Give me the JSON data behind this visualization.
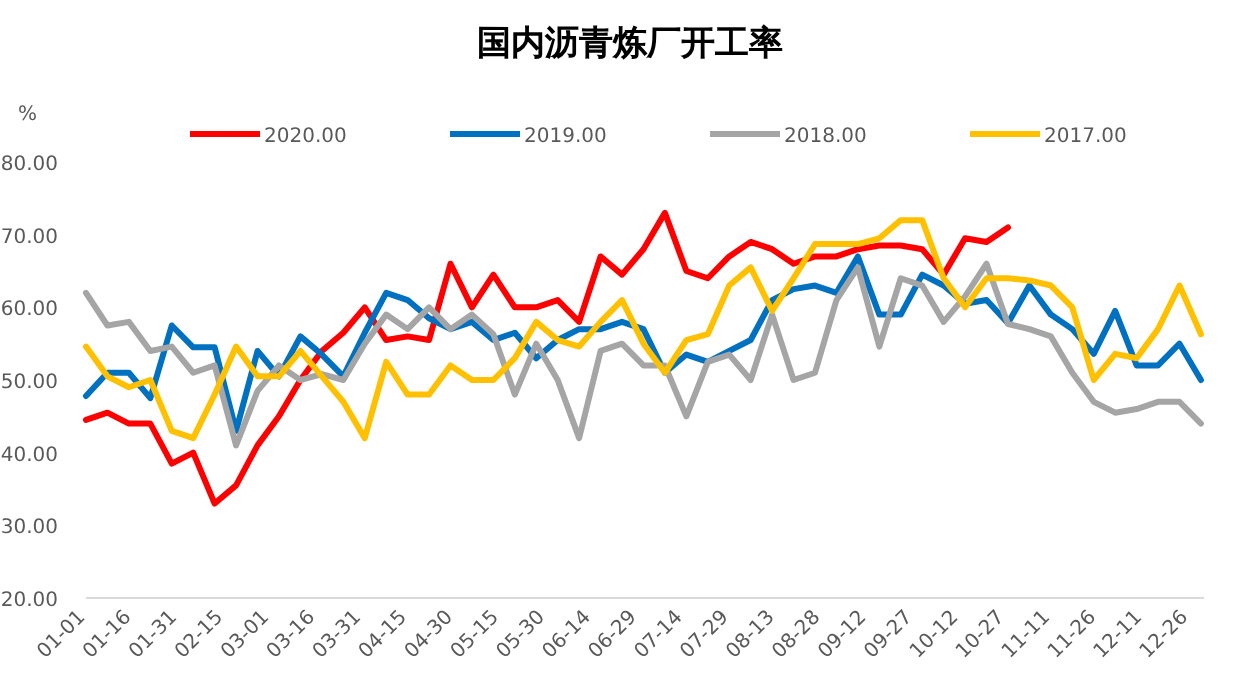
{
  "chart_data": {
    "type": "line",
    "title": "国内沥青炼厂开工率",
    "ylabel": "%",
    "x": [
      "--01-01",
      "--01-08",
      "--01-15",
      "--01-22",
      "--01-29",
      "--02-05",
      "--02-12",
      "--02-19",
      "--02-26",
      "--03-04",
      "--03-11",
      "--03-18",
      "--03-25",
      "--04-01",
      "--04-08",
      "--04-15",
      "--04-22",
      "--04-29",
      "--05-06",
      "--05-13",
      "--05-20",
      "--05-27",
      "--06-03",
      "--06-10",
      "--06-17",
      "--06-24",
      "--07-01",
      "--07-08",
      "--07-15",
      "--07-22",
      "--07-29",
      "--08-05",
      "--08-12",
      "--08-19",
      "--08-26",
      "--09-02",
      "--09-09",
      "--09-16",
      "--09-23",
      "--09-30",
      "--10-07",
      "--10-14",
      "--10-21",
      "--10-28",
      "--11-04",
      "--11-11",
      "--11-18",
      "--11-25",
      "--12-02",
      "--12-09",
      "--12-16",
      "--12-23",
      "--12-30"
    ],
    "series": [
      {
        "name": "2020.00",
        "color": "#ff0000",
        "values": [
          44.5,
          45.5,
          44,
          44,
          38.5,
          40,
          33,
          35.5,
          41,
          45,
          50,
          54,
          56.5,
          60,
          55.5,
          56,
          55.5,
          66,
          60,
          64.5,
          60,
          60,
          61,
          58,
          67,
          64.5,
          68,
          73,
          65,
          64,
          67,
          69,
          68,
          66,
          67,
          67,
          68,
          68.5,
          68.5,
          68,
          64.5,
          69.5,
          69,
          71,
          null,
          null,
          null,
          null,
          null,
          null,
          null,
          null,
          null
        ]
      },
      {
        "name": "2019.00",
        "color": "#0070c0",
        "values": [
          47.8,
          51,
          51,
          47.5,
          57.5,
          54.5,
          54.5,
          43,
          54,
          50.5,
          56,
          53.5,
          50.5,
          56.5,
          62,
          61,
          58.5,
          57,
          58,
          55.5,
          56.5,
          53,
          55.5,
          57,
          57,
          58,
          57,
          51,
          53.5,
          52.5,
          54,
          55.5,
          61,
          62.5,
          63,
          62,
          67,
          59,
          59,
          64.5,
          63,
          60.5,
          61,
          57.8,
          63,
          59,
          57,
          53.6,
          59.5,
          52,
          52,
          55,
          50
        ]
      },
      {
        "name": "2018.00",
        "color": "#a5a5a5",
        "values": [
          62,
          57.5,
          58,
          54,
          54.6,
          51,
          52,
          41,
          48.5,
          52,
          50,
          50.8,
          50,
          55,
          59,
          57,
          60,
          57,
          59,
          56.3,
          48,
          55,
          50,
          42,
          54,
          55,
          52,
          52,
          45,
          52.5,
          53.5,
          50,
          59,
          50,
          51,
          61,
          65.5,
          54.6,
          64,
          63,
          58,
          61.5,
          66,
          57.7,
          57,
          56,
          51,
          47,
          45.5,
          46,
          47,
          47,
          44
        ]
      },
      {
        "name": "2017.00",
        "color": "#ffc000",
        "values": [
          54.6,
          50.5,
          49,
          50,
          43,
          42,
          48,
          54.6,
          50.5,
          50.5,
          54,
          50.5,
          47,
          42,
          52.5,
          48,
          48,
          52,
          50,
          50,
          53,
          58,
          55.5,
          54.6,
          58,
          61,
          55,
          51,
          55.5,
          56.3,
          63,
          65.5,
          59.5,
          64,
          68.7,
          68.7,
          68.7,
          69.5,
          72,
          72,
          64,
          60,
          64,
          64,
          63.7,
          63,
          60,
          50,
          53.6,
          53,
          57,
          63,
          56.3
        ]
      }
    ],
    "xlim": [
      "--01-01",
      "--12-31"
    ],
    "xticks": [
      {
        "value": "--01-01",
        "label": "01-01"
      },
      {
        "value": "--01-16",
        "label": "01-16"
      },
      {
        "value": "--01-31",
        "label": "01-31"
      },
      {
        "value": "--02-15",
        "label": "02-15"
      },
      {
        "value": "--03-01",
        "label": "03-01"
      },
      {
        "value": "--03-16",
        "label": "03-16"
      },
      {
        "value": "--03-31",
        "label": "03-31"
      },
      {
        "value": "--04-15",
        "label": "04-15"
      },
      {
        "value": "--04-30",
        "label": "04-30"
      },
      {
        "value": "--05-15",
        "label": "05-15"
      },
      {
        "value": "--05-30",
        "label": "05-30"
      },
      {
        "value": "--06-14",
        "label": "06-14"
      },
      {
        "value": "--06-29",
        "label": "06-29"
      },
      {
        "value": "--07-14",
        "label": "07-14"
      },
      {
        "value": "--07-29",
        "label": "07-29"
      },
      {
        "value": "--08-13",
        "label": "08-13"
      },
      {
        "value": "--08-28",
        "label": "08-28"
      },
      {
        "value": "--09-12",
        "label": "09-12"
      },
      {
        "value": "--09-27",
        "label": "09-27"
      },
      {
        "value": "--10-12",
        "label": "10-12"
      },
      {
        "value": "--10-27",
        "label": "10-27"
      },
      {
        "value": "--11-11",
        "label": "11-11"
      },
      {
        "value": "--11-26",
        "label": "11-26"
      },
      {
        "value": "--12-11",
        "label": "12-11"
      },
      {
        "value": "--12-26",
        "label": "12-26"
      }
    ],
    "ylim": [
      20,
      80
    ],
    "yticks": [
      {
        "value": 20,
        "label": "20.00"
      },
      {
        "value": 30,
        "label": "30.00"
      },
      {
        "value": 40,
        "label": "40.00"
      },
      {
        "value": 50,
        "label": "50.00"
      },
      {
        "value": 60,
        "label": "60.00"
      },
      {
        "value": 70,
        "label": "70.00"
      },
      {
        "value": 80,
        "label": "80.00"
      }
    ],
    "legend": "top",
    "line_style": "solid"
  }
}
